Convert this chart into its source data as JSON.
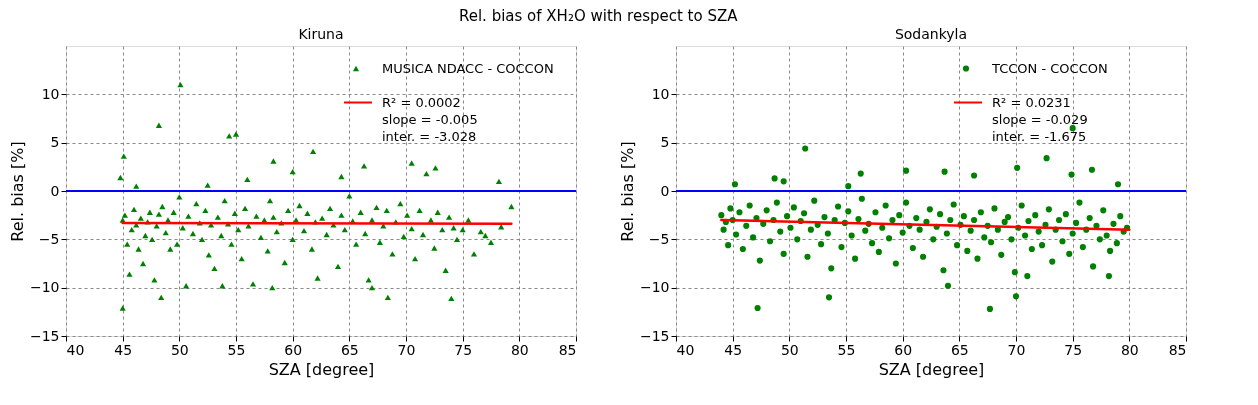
{
  "chart_data": [
    {
      "type": "scatter",
      "title": "Kiruna",
      "annotations": [
        "Rel. bias of XH₂O with respect to SZA"
      ],
      "xlabel": "SZA [degree]",
      "ylabel": "Rel. bias [%]",
      "xlim": [
        40,
        85
      ],
      "xticks": [
        40,
        45,
        50,
        55,
        60,
        65,
        70,
        75,
        80,
        85
      ],
      "ylim": [
        -15,
        15
      ],
      "yticks": [
        -15,
        -10,
        -5,
        0,
        5,
        10
      ],
      "grid": true,
      "legend": "top right",
      "marker": "triangle",
      "ref_lines": [
        {
          "axis": "y",
          "value": 0,
          "color": "#0000ff"
        }
      ],
      "series": [
        {
          "name": "MUSICA NDACC - COCCON",
          "color": "#008000",
          "x": [
            45.0,
            45.2,
            45.4,
            45.6,
            45.8,
            46.0,
            46.2,
            46.4,
            46.6,
            46.8,
            47.0,
            47.2,
            47.4,
            47.6,
            47.8,
            48.0,
            48.2,
            48.5,
            48.8,
            49.0,
            49.2,
            49.5,
            49.8,
            50.0,
            50.3,
            50.6,
            50.8,
            51.2,
            51.5,
            51.8,
            52.0,
            52.3,
            52.6,
            52.8,
            53.1,
            53.4,
            53.7,
            54.0,
            54.3,
            54.6,
            54.9,
            55.2,
            55.5,
            55.8,
            56.1,
            56.5,
            56.8,
            57.2,
            57.5,
            57.8,
            58.0,
            58.3,
            58.6,
            59.0,
            59.3,
            59.6,
            60.0,
            60.3,
            60.6,
            61.0,
            61.3,
            61.7,
            62.0,
            62.2,
            62.6,
            63.0,
            63.3,
            63.6,
            64.0,
            64.3,
            64.6,
            65.0,
            65.3,
            65.6,
            66.0,
            66.4,
            66.7,
            67.0,
            67.4,
            67.7,
            68.0,
            68.3,
            68.8,
            69.1,
            69.5,
            69.8,
            70.1,
            70.5,
            70.8,
            71.2,
            71.5,
            71.8,
            72.2,
            72.5,
            72.8,
            73.2,
            73.5,
            73.8,
            74.2,
            74.5,
            75.0,
            75.5,
            76.0,
            76.6,
            77.0,
            77.5,
            78.2,
            78.4,
            79.3,
            44.8,
            45.1,
            45.0,
            48.2,
            50.1,
            54.4,
            55.0,
            48.4,
            58.2,
            68.4,
            74.0,
            58.3,
            61.8,
            66.3,
            70.5,
            72.6,
            60.0,
            46.2,
            52.5,
            56.0,
            64.3,
            53.8,
            67.0
          ],
          "values": [
            -3.0,
            -2.5,
            -5.5,
            -8.6,
            -4.0,
            -1.9,
            -3.5,
            -6.0,
            -2.8,
            -7.5,
            -4.6,
            -3.2,
            -2.2,
            -5.0,
            -9.2,
            -3.6,
            -2.4,
            -1.6,
            -4.3,
            -3.0,
            -6.0,
            -2.2,
            -5.5,
            -0.6,
            -3.8,
            -9.8,
            -2.6,
            -4.4,
            -1.3,
            -3.3,
            -5.0,
            -2.0,
            -6.6,
            -3.5,
            -8.0,
            -2.7,
            -4.6,
            -1.0,
            -3.4,
            -5.5,
            -2.3,
            -4.0,
            -7.0,
            -1.8,
            -3.6,
            -9.6,
            -2.6,
            -4.8,
            -3.0,
            -6.2,
            -1.0,
            -2.7,
            -4.2,
            -3.3,
            -7.4,
            -2.0,
            -5.0,
            -3.0,
            -1.5,
            -4.1,
            -2.3,
            -6.0,
            -3.2,
            -9.0,
            -2.8,
            -4.5,
            -1.8,
            -3.5,
            -7.8,
            -2.5,
            -4.0,
            -0.5,
            -3.1,
            -5.5,
            -2.2,
            -4.4,
            -9.2,
            -3.0,
            -1.7,
            -5.3,
            -3.6,
            -2.0,
            -6.5,
            -3.2,
            -1.3,
            -4.7,
            -2.5,
            -3.9,
            -7.0,
            -2.0,
            -4.5,
            1.8,
            -3.0,
            -5.9,
            -2.2,
            -4.0,
            -8.2,
            -2.7,
            -3.8,
            -5.0,
            -4.0,
            -3.0,
            -6.5,
            -4.2,
            -4.6,
            -5.3,
            1.0,
            -3.7,
            -1.6,
            1.4,
            3.6,
            -12.1,
            6.8,
            11.0,
            5.7,
            5.9,
            -11.0,
            -10.0,
            -11.0,
            -11.1,
            3.1,
            4.1,
            2.6,
            2.9,
            2.4,
            2.0,
            0.5,
            0.6,
            1.2,
            1.5,
            -9.8,
            -10.0
          ]
        },
        {
          "name": "R² = 0.0002\nslope = -0.005\ninter. = -3.028",
          "type": "line",
          "marker": "none",
          "color": "#ff0000",
          "x": [
            45.0,
            79.3
          ],
          "values": [
            -3.3,
            -3.4
          ]
        }
      ]
    },
    {
      "type": "scatter",
      "title": "Sodankyla",
      "xlabel": "SZA [degree]",
      "ylabel": "Rel. bias [%]",
      "xlim": [
        40,
        85
      ],
      "xticks": [
        40,
        45,
        50,
        55,
        60,
        65,
        70,
        75,
        80,
        85
      ],
      "ylim": [
        -15,
        15
      ],
      "yticks": [
        -15,
        -10,
        -5,
        0,
        5,
        10
      ],
      "grid": true,
      "legend": "top right",
      "marker": "circle",
      "ref_lines": [
        {
          "axis": "y",
          "value": 0,
          "color": "#0000ff"
        }
      ],
      "series": [
        {
          "name": "TCCON - COCCON",
          "color": "#008000",
          "x": [
            44.0,
            44.2,
            44.4,
            44.6,
            44.8,
            45.0,
            45.3,
            45.6,
            45.9,
            46.2,
            46.5,
            46.8,
            47.1,
            47.4,
            47.7,
            48.0,
            48.3,
            48.6,
            48.9,
            49.2,
            49.5,
            49.8,
            50.1,
            50.4,
            50.7,
            51.0,
            51.3,
            51.6,
            51.9,
            52.2,
            52.5,
            52.8,
            53.1,
            53.4,
            53.7,
            54.0,
            54.3,
            54.6,
            54.9,
            55.2,
            55.5,
            55.8,
            56.1,
            56.4,
            56.7,
            57.0,
            57.3,
            57.6,
            57.9,
            58.2,
            58.5,
            58.8,
            59.1,
            59.4,
            59.7,
            60.0,
            60.3,
            60.6,
            60.9,
            61.2,
            61.5,
            61.8,
            62.1,
            62.4,
            62.7,
            63.0,
            63.3,
            63.6,
            63.9,
            64.2,
            64.5,
            64.8,
            65.1,
            65.4,
            65.7,
            66.0,
            66.3,
            66.6,
            66.9,
            67.2,
            67.5,
            67.8,
            68.1,
            68.4,
            68.7,
            69.0,
            69.3,
            69.6,
            69.9,
            70.2,
            70.5,
            70.8,
            71.1,
            71.4,
            71.7,
            72.0,
            72.3,
            72.6,
            72.9,
            73.2,
            73.5,
            73.8,
            74.1,
            74.4,
            74.7,
            75.0,
            75.3,
            75.6,
            75.9,
            76.2,
            76.5,
            76.8,
            77.1,
            77.4,
            77.7,
            78.0,
            78.3,
            78.6,
            78.9,
            79.2,
            79.5,
            79.8,
            51.4,
            75.0,
            47.2,
            67.7,
            53.5,
            70.0,
            64.0,
            71.0,
            78.2,
            72.7,
            70.1,
            76.7,
            74.9,
            63.7,
            60.3,
            66.3,
            79.0,
            45.2,
            48.7,
            56.3,
            49.5,
            55.2
          ],
          "values": [
            -2.5,
            -4.0,
            -3.2,
            -5.6,
            -1.8,
            -3.0,
            -4.5,
            -2.2,
            -6.0,
            -3.6,
            -1.5,
            -4.8,
            -2.8,
            -7.2,
            -3.4,
            -2.0,
            -5.2,
            -3.0,
            -1.2,
            -4.2,
            -6.5,
            -2.6,
            -3.8,
            -1.7,
            -5.0,
            -3.1,
            -2.3,
            -6.8,
            -4.0,
            -1.0,
            -3.5,
            -5.5,
            -2.7,
            -4.4,
            -8.0,
            -3.0,
            -1.6,
            -5.8,
            -3.3,
            -2.1,
            -4.6,
            -7.0,
            -2.9,
            -0.8,
            -4.1,
            -3.4,
            -5.4,
            -2.2,
            -6.3,
            -3.8,
            -1.5,
            -4.9,
            -3.0,
            -7.5,
            -2.5,
            -4.3,
            -1.2,
            -3.6,
            -5.9,
            -2.8,
            -4.0,
            -6.8,
            -3.2,
            -1.9,
            -5.0,
            -3.7,
            -2.4,
            -8.2,
            -4.4,
            -3.0,
            -1.4,
            -5.6,
            -3.5,
            -2.6,
            -6.2,
            -4.1,
            -3.0,
            -7.0,
            -2.2,
            -4.8,
            -3.6,
            -5.3,
            -1.8,
            -4.0,
            -6.6,
            -3.2,
            -2.7,
            -5.0,
            -8.4,
            -3.8,
            -1.5,
            -4.6,
            -3.1,
            -6.0,
            -2.5,
            -4.2,
            -5.6,
            -3.5,
            -1.9,
            -7.3,
            -4.0,
            -3.0,
            -5.2,
            -2.4,
            -6.5,
            -4.4,
            -3.3,
            -1.2,
            -5.8,
            -4.0,
            -2.8,
            -7.8,
            -3.6,
            -5.0,
            -2.0,
            -4.6,
            -6.2,
            -3.4,
            -5.4,
            -2.6,
            -4.2,
            -3.8,
            4.4,
            6.5,
            -12.1,
            -12.2,
            -11.0,
            -10.9,
            -9.8,
            -8.8,
            -8.8,
            3.4,
            2.4,
            2.2,
            1.7,
            2.0,
            2.1,
            1.6,
            0.7,
            0.7,
            1.3,
            1.8,
            1.0,
            0.5
          ]
        },
        {
          "name": "R² = 0.0231\nslope = -0.029\ninter. = -1.675",
          "type": "line",
          "marker": "none",
          "color": "#ff0000",
          "x": [
            44.0,
            80.0
          ],
          "values": [
            -3.0,
            -4.0
          ]
        }
      ]
    }
  ]
}
